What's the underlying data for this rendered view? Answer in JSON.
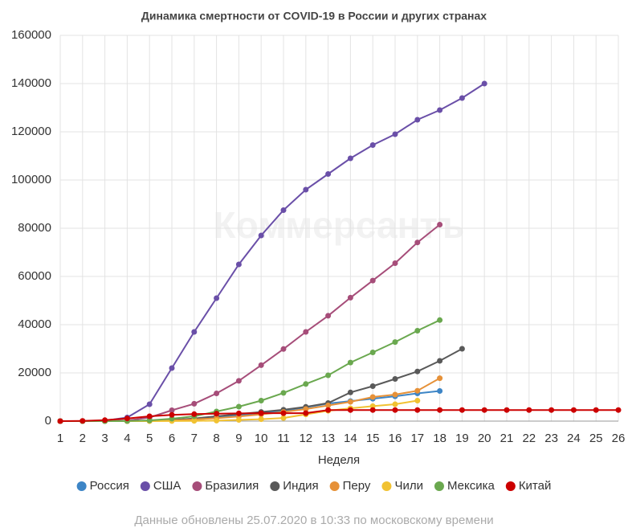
{
  "chart_data": {
    "type": "line",
    "title": "Динамика смертности от COVID-19 в России и других странах",
    "watermark": "Коммерсантъ",
    "x_label": "Неделя",
    "note": "Данные обновлены 25.07.2020 в 10:33 по московскому времени",
    "categories": [
      "1",
      "2",
      "3",
      "4",
      "5",
      "6",
      "7",
      "8",
      "9",
      "10",
      "11",
      "12",
      "13",
      "14",
      "15",
      "16",
      "17",
      "18",
      "19",
      "20",
      "21",
      "22",
      "23",
      "24",
      "25",
      "26"
    ],
    "ylim": [
      0,
      160000
    ],
    "yticks": [
      0,
      20000,
      40000,
      60000,
      80000,
      100000,
      120000,
      140000,
      160000
    ],
    "grid": true,
    "legend": "bottom",
    "series": [
      {
        "name": "Россия",
        "color": "#3d85c6",
        "values": [
          0,
          0,
          0,
          0,
          100,
          500,
          900,
          1500,
          2300,
          3200,
          4300,
          5700,
          7300,
          8300,
          9300,
          10300,
          11500,
          12500,
          null,
          null,
          null,
          null,
          null,
          null,
          null,
          null
        ]
      },
      {
        "name": "США",
        "color": "#6a4fa8",
        "values": [
          0,
          0,
          200,
          1500,
          7000,
          22000,
          37000,
          51000,
          65000,
          77000,
          87500,
          96000,
          102500,
          109000,
          114500,
          119000,
          125000,
          129000,
          134000,
          140000,
          null,
          null,
          null,
          null,
          null,
          null
        ]
      },
      {
        "name": "Бразилия",
        "color": "#a64d79",
        "values": [
          0,
          0,
          0,
          200,
          1500,
          4500,
          7200,
          11500,
          16700,
          23200,
          29900,
          37000,
          43700,
          51200,
          58300,
          65500,
          74100,
          81500,
          null,
          null,
          null,
          null,
          null,
          null,
          null,
          null
        ]
      },
      {
        "name": "Индия",
        "color": "#595959",
        "values": [
          0,
          0,
          0,
          30,
          100,
          500,
          1100,
          2000,
          2900,
          3800,
          4700,
          5900,
          7500,
          11900,
          14500,
          17500,
          20600,
          25000,
          30000,
          null,
          null,
          null,
          null,
          null,
          null,
          null
        ]
      },
      {
        "name": "Перу",
        "color": "#e69138",
        "values": [
          0,
          0,
          0,
          0,
          100,
          300,
          700,
          1200,
          1900,
          2800,
          3800,
          5000,
          6500,
          8000,
          10000,
          11000,
          12600,
          17800,
          null,
          null,
          null,
          null,
          null,
          null,
          null,
          null
        ]
      },
      {
        "name": "Чили",
        "color": "#f1c232",
        "values": [
          0,
          0,
          0,
          0,
          0,
          50,
          100,
          200,
          500,
          800,
          1300,
          2800,
          4300,
          5300,
          6200,
          7000,
          8500,
          null,
          null,
          null,
          null,
          null,
          null,
          null,
          null,
          null
        ]
      },
      {
        "name": "Мексика",
        "color": "#6aa84f",
        "values": [
          0,
          0,
          0,
          50,
          300,
          1000,
          2000,
          4000,
          6000,
          8500,
          11700,
          15400,
          19000,
          24300,
          28500,
          32800,
          37500,
          41900,
          null,
          null,
          null,
          null,
          null,
          null,
          null,
          null
        ]
      },
      {
        "name": "Китай",
        "color": "#cc0000",
        "values": [
          0,
          100,
          400,
          1100,
          2000,
          2600,
          2900,
          3100,
          3200,
          3300,
          3300,
          3300,
          4600,
          4600,
          4600,
          4600,
          4600,
          4600,
          4600,
          4600,
          4600,
          4600,
          4600,
          4600,
          4600,
          4600
        ]
      }
    ]
  }
}
